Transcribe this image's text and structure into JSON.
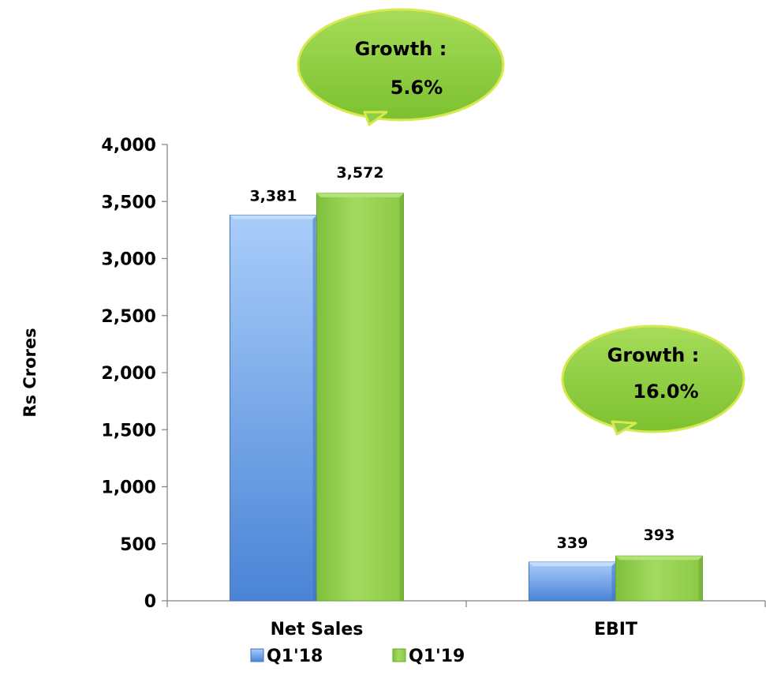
{
  "chart_data": {
    "type": "bar",
    "categories": [
      "Net Sales",
      "EBIT"
    ],
    "series": [
      {
        "name": "Q1'18",
        "values": [
          3381,
          339
        ],
        "labels": [
          "3,381",
          "339"
        ],
        "color": "#5b8fd6"
      },
      {
        "name": "Q1'19",
        "values": [
          3572,
          393
        ],
        "labels": [
          "3,572",
          "393"
        ],
        "color": "#92d050"
      }
    ],
    "ylabel": "Rs Crores",
    "xlabel": "",
    "ylim": [
      0,
      4000
    ],
    "yticks": [
      0,
      500,
      1000,
      1500,
      2000,
      2500,
      3000,
      3500,
      4000
    ],
    "ytick_labels": [
      "0",
      "500",
      "1,000",
      "1,500",
      "2,000",
      "2,500",
      "3,000",
      "3,500",
      "4,000"
    ],
    "grid": false,
    "legend_position": "bottom",
    "annotations": [
      {
        "category": "Net Sales",
        "line1": "Growth :",
        "line2": "5.6%"
      },
      {
        "category": "EBIT",
        "line1": "Growth :",
        "line2": "16.0%"
      }
    ],
    "colors": {
      "bubble_fill": "#92d050",
      "bubble_border": "#d7e94e",
      "axis": "#808080"
    }
  }
}
